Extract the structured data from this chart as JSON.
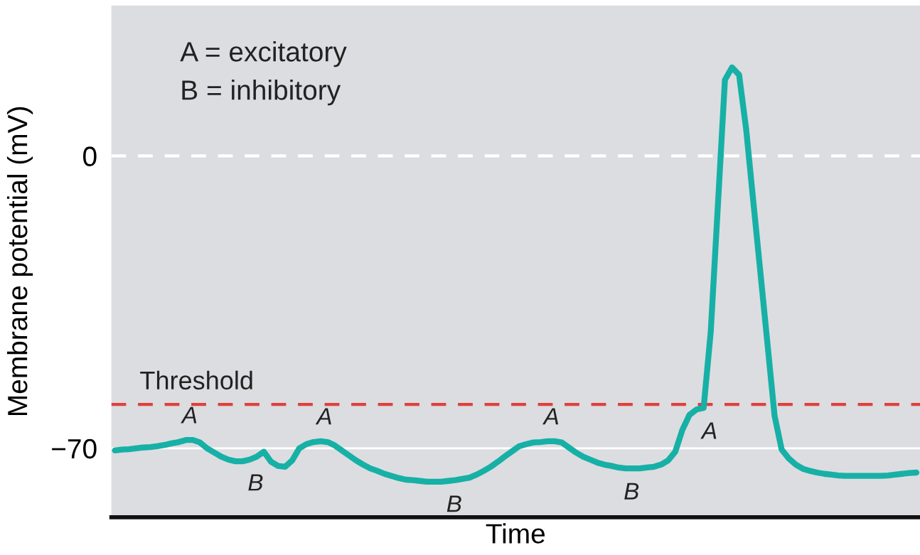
{
  "chart_data": {
    "type": "line",
    "xlabel": "Time",
    "ylabel": "Membrane potential (mV)",
    "categories": [
      null,
      null,
      null,
      null,
      null,
      null,
      null,
      null,
      null,
      null,
      null,
      null,
      null,
      null,
      null,
      null,
      null,
      null,
      null,
      null,
      null,
      null,
      null,
      null,
      null,
      null,
      null,
      null,
      null,
      null,
      null,
      null,
      null,
      null,
      null,
      null,
      null,
      null,
      null,
      null,
      null,
      null,
      null,
      null,
      null,
      null,
      null,
      null,
      null,
      null,
      null,
      null,
      null,
      null,
      null,
      null,
      null,
      null,
      null,
      null,
      null,
      null,
      null,
      null,
      null,
      null,
      null,
      null,
      null,
      null,
      null,
      null,
      null,
      null,
      null,
      null,
      null,
      null,
      null,
      null,
      null,
      null,
      null,
      null,
      null,
      null,
      null,
      null,
      null,
      null,
      null,
      null,
      null,
      null,
      null,
      null,
      null,
      null,
      null,
      null,
      null,
      null,
      null,
      null,
      null,
      null,
      null,
      null,
      null,
      null,
      null,
      null,
      null,
      null
    ],
    "series": [
      {
        "color": "#17b0a6",
        "values": [
          -70.5,
          -70.3,
          -70.2,
          -70.0,
          -69.8,
          -69.7,
          -69.5,
          -69.2,
          -68.8,
          -68.5,
          -68.0,
          -68.0,
          -68.6,
          -70.0,
          -71.0,
          -72.0,
          -72.7,
          -73.1,
          -73.1,
          -72.7,
          -72.0,
          -70.8,
          -73.2,
          -74.2,
          -74.4,
          -72.9,
          -70.0,
          -69.0,
          -68.5,
          -68.3,
          -68.5,
          -69.3,
          -70.5,
          -71.7,
          -72.9,
          -73.9,
          -74.8,
          -75.4,
          -76.1,
          -76.6,
          -77.1,
          -77.5,
          -77.6,
          -77.8,
          -78.0,
          -78.0,
          -78.0,
          -77.8,
          -77.6,
          -77.3,
          -77.0,
          -76.3,
          -75.4,
          -74.4,
          -73.2,
          -71.9,
          -70.7,
          -69.5,
          -69.0,
          -68.6,
          -68.5,
          -68.3,
          -68.3,
          -68.6,
          -69.8,
          -71.0,
          -72.0,
          -72.7,
          -73.4,
          -73.9,
          -74.2,
          -74.6,
          -74.8,
          -74.8,
          -74.8,
          -74.6,
          -74.4,
          -73.9,
          -72.9,
          -70.8,
          -65.6,
          -62.0,
          -60.7,
          -60.3,
          -42.1,
          -12.1,
          18.2,
          21.2,
          19.4,
          6.3,
          -10.9,
          -27.9,
          -45.0,
          -62.2,
          -70.3,
          -72.4,
          -73.9,
          -74.9,
          -75.4,
          -75.8,
          -76.1,
          -76.3,
          -76.5,
          -76.6,
          -76.6,
          -76.6,
          -76.6,
          -76.6,
          -76.6,
          -76.5,
          -76.3,
          -76.1,
          -75.9,
          -75.8
        ],
        "value_labels": [
          null,
          null,
          null,
          null,
          null,
          null,
          null,
          null,
          null,
          null,
          "A",
          null,
          null,
          null,
          null,
          null,
          null,
          null,
          null,
          "B",
          null,
          null,
          null,
          null,
          null,
          null,
          null,
          null,
          null,
          "A",
          null,
          null,
          null,
          null,
          null,
          null,
          null,
          null,
          null,
          null,
          null,
          null,
          null,
          null,
          null,
          null,
          null,
          "B",
          null,
          null,
          null,
          null,
          null,
          null,
          null,
          null,
          null,
          null,
          null,
          null,
          null,
          "A",
          null,
          null,
          null,
          null,
          null,
          null,
          null,
          null,
          null,
          null,
          "B",
          null,
          null,
          null,
          null,
          null,
          null,
          null,
          null,
          null,
          null,
          "A",
          null,
          null,
          null,
          null,
          null,
          null,
          null,
          null,
          null,
          null,
          null,
          null,
          null,
          null,
          null,
          null,
          null,
          null,
          null,
          null,
          null,
          null,
          null,
          null,
          null,
          null,
          null,
          null,
          null,
          null
        ]
      }
    ],
    "ylim": [
      -86.5,
      36
    ],
    "yticks": [
      0,
      {
        "value": -70,
        "label": "−70"
      }
    ],
    "tick_labels": "y",
    "grid": false,
    "legend": false,
    "marker": "none",
    "line_style": "solid",
    "ref_lines": [
      {
        "axis": "y",
        "value": 0,
        "color": "#ffffff",
        "line_style": "dashed"
      },
      {
        "axis": "y",
        "value": -70,
        "color": "#ffffff",
        "line_style": "solid"
      },
      {
        "axis": "y",
        "value": -59.5,
        "label": "Threshold",
        "color": "#e0403c",
        "line_style": "dashed"
      }
    ],
    "annotations": [
      "A = excitatory",
      "B = inhibitory"
    ]
  }
}
